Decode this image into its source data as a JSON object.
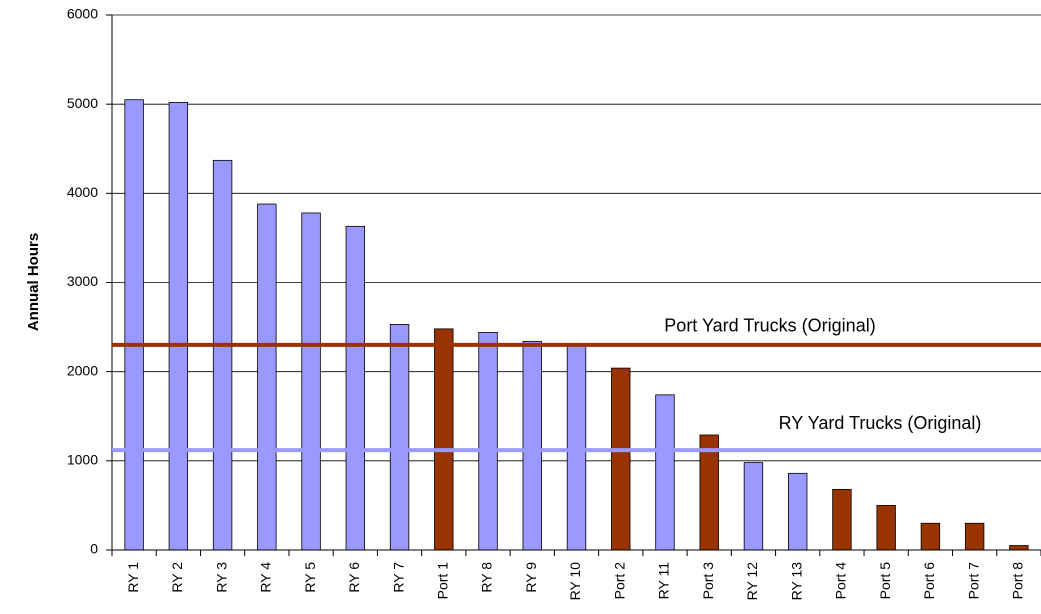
{
  "chart_data": {
    "type": "bar",
    "y_label": "Annual Hours",
    "categories": [
      "RY 1",
      "RY 2",
      "RY 3",
      "RY 4",
      "RY 5",
      "RY 6",
      "RY 7",
      "Port 1",
      "RY 8",
      "RY 9",
      "RY 10",
      "Port 2",
      "RY 11",
      "Port 3",
      "RY 12",
      "RY 13",
      "Port 4",
      "Port 5",
      "Port 6",
      "Port 7",
      "Port 8"
    ],
    "values": [
      5050,
      5020,
      4370,
      3880,
      3780,
      3630,
      2530,
      2480,
      2440,
      2340,
      2300,
      2040,
      1740,
      1290,
      980,
      860,
      680,
      500,
      300,
      300,
      50
    ],
    "colors": [
      "#9999ff",
      "#9999ff",
      "#9999ff",
      "#9999ff",
      "#9999ff",
      "#9999ff",
      "#9999ff",
      "#993300",
      "#9999ff",
      "#9999ff",
      "#9999ff",
      "#993300",
      "#9999ff",
      "#993300",
      "#9999ff",
      "#9999ff",
      "#993300",
      "#993300",
      "#993300",
      "#993300",
      "#993300"
    ],
    "reference_lines": [
      {
        "label": "Port Yard Trucks (Original)",
        "value": 2300,
        "color": "#993300"
      },
      {
        "label": "RY Yard Trucks (Original)",
        "value": 1120,
        "color": "#9999ff"
      }
    ],
    "ylim": [
      0,
      6000
    ],
    "yticks": [
      0,
      1000,
      2000,
      3000,
      4000,
      5000,
      6000
    ],
    "grid": true
  }
}
